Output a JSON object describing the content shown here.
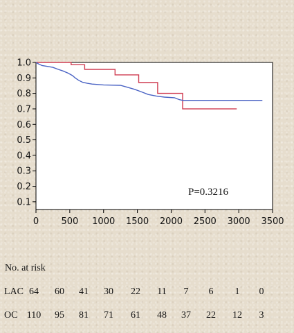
{
  "chart_data": {
    "type": "line",
    "step": true,
    "xlim": [
      0,
      3500
    ],
    "ylim": [
      0.05,
      1.0
    ],
    "xticks": [
      0,
      500,
      1000,
      1500,
      2000,
      2500,
      3000,
      3500
    ],
    "yticks": [
      0.1,
      0.2,
      0.3,
      0.4,
      0.5,
      0.6,
      0.7,
      0.8,
      0.9,
      1.0
    ],
    "ytick_labels": [
      "0.1",
      "0.2",
      "0.3",
      "0.4",
      "0.5",
      "0.6",
      "0.7",
      "0.8",
      "0.9",
      "1.0"
    ],
    "grid": false,
    "annotation": "P=0.3216",
    "series": [
      {
        "color": "#cf3d52",
        "points": [
          [
            0,
            1.0
          ],
          [
            520,
            1.0
          ],
          [
            520,
            0.985
          ],
          [
            720,
            0.985
          ],
          [
            720,
            0.955
          ],
          [
            1170,
            0.955
          ],
          [
            1170,
            0.92
          ],
          [
            1520,
            0.92
          ],
          [
            1520,
            0.87
          ],
          [
            1800,
            0.87
          ],
          [
            1800,
            0.8
          ],
          [
            2170,
            0.8
          ],
          [
            2170,
            0.7
          ],
          [
            2970,
            0.7
          ]
        ]
      },
      {
        "color": "#4a63c4",
        "points": [
          [
            0,
            1.0
          ],
          [
            40,
            0.99
          ],
          [
            90,
            0.98
          ],
          [
            160,
            0.975
          ],
          [
            250,
            0.968
          ],
          [
            330,
            0.955
          ],
          [
            400,
            0.945
          ],
          [
            480,
            0.93
          ],
          [
            540,
            0.915
          ],
          [
            580,
            0.9
          ],
          [
            630,
            0.885
          ],
          [
            690,
            0.872
          ],
          [
            760,
            0.865
          ],
          [
            830,
            0.86
          ],
          [
            1000,
            0.855
          ],
          [
            1250,
            0.852
          ],
          [
            1350,
            0.84
          ],
          [
            1460,
            0.826
          ],
          [
            1560,
            0.81
          ],
          [
            1660,
            0.793
          ],
          [
            1780,
            0.783
          ],
          [
            1900,
            0.776
          ],
          [
            2050,
            0.772
          ],
          [
            2120,
            0.76
          ],
          [
            2170,
            0.755
          ],
          [
            3350,
            0.755
          ]
        ]
      }
    ]
  },
  "risk_table": {
    "title": "No. at risk",
    "rows": [
      {
        "label": "LAC",
        "values": [
          "64",
          "60",
          "41",
          "30",
          "22",
          "11",
          "7",
          "6",
          "1",
          "0"
        ]
      },
      {
        "label": "OC",
        "values": [
          "110",
          "95",
          "81",
          "71",
          "61",
          "48",
          "37",
          "22",
          "12",
          "3"
        ]
      }
    ]
  }
}
